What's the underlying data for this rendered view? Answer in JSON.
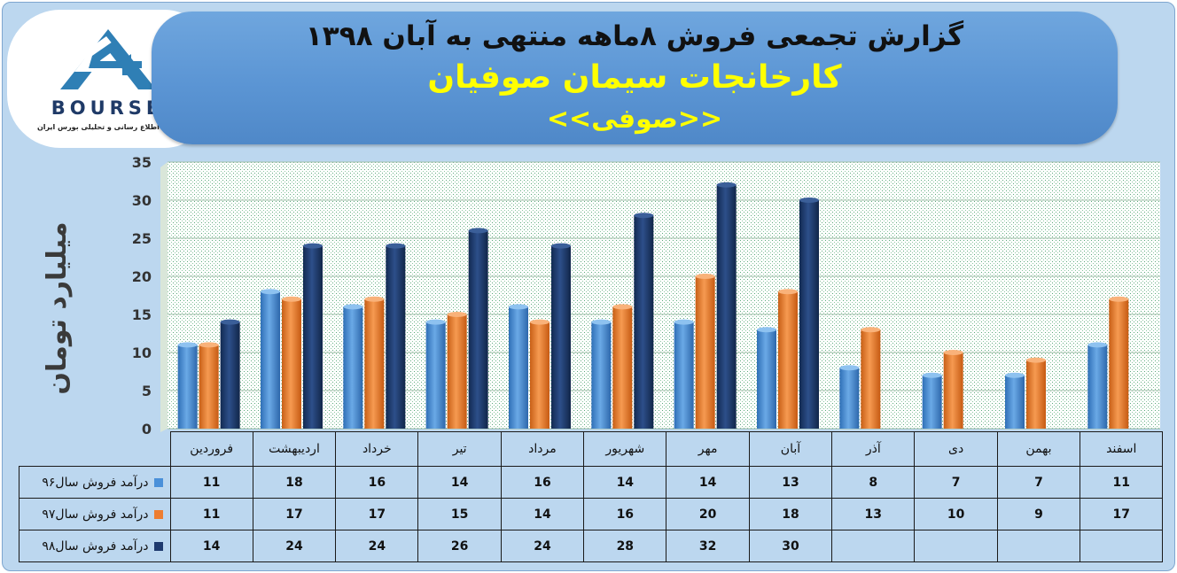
{
  "header": {
    "title_line1": "گزارش تجمعی فروش  ۸ماهه منتهی به آبان ۱۳۹۸",
    "title_line2": "کارخانجات سیمان صوفیان",
    "title_line3": "<<صوفی>>"
  },
  "logo": {
    "word": "BOURSE",
    "subtitle": "پایگاه اطلاع رسانی و تحلیلی بورس ایران"
  },
  "colors": {
    "series96": "#4a90d9",
    "series97": "#ed7d31",
    "series98": "#1f3a6e"
  },
  "chart_data": {
    "type": "bar",
    "ylabel": "میلیارد تومان",
    "ylim": [
      0,
      35
    ],
    "yticks": [
      0,
      5,
      10,
      15,
      20,
      25,
      30,
      35
    ],
    "grid": true,
    "categories": [
      "فروردین",
      "اردیبهشت",
      "خرداد",
      "تیر",
      "مرداد",
      "شهریور",
      "مهر",
      "آبان",
      "آذر",
      "دی",
      "بهمن",
      "اسفند"
    ],
    "series": [
      {
        "name": "درآمد فروش سال۹۶",
        "values": [
          11,
          18,
          16,
          14,
          16,
          14,
          14,
          13,
          8,
          7,
          7,
          11
        ]
      },
      {
        "name": "درآمد فروش سال۹۷",
        "values": [
          11,
          17,
          17,
          15,
          14,
          16,
          20,
          18,
          13,
          10,
          9,
          17
        ]
      },
      {
        "name": "درآمد فروش سال۹۸",
        "values": [
          14,
          24,
          24,
          26,
          24,
          28,
          32,
          30,
          null,
          null,
          null,
          null
        ]
      }
    ]
  }
}
